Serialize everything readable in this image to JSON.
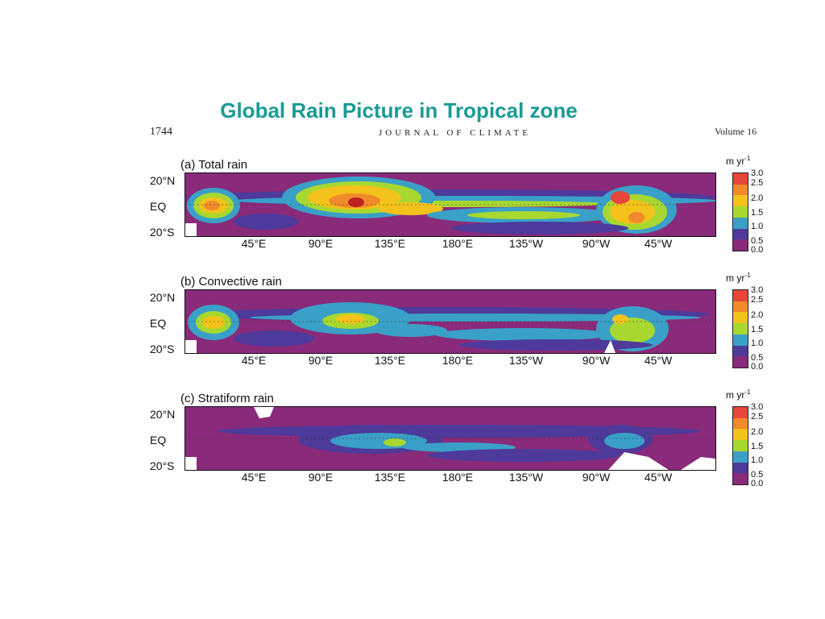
{
  "slide": {
    "title": "Global Rain Picture in Tropical zone"
  },
  "journal": {
    "page": "1744",
    "name": "JOURNAL OF CLIMATE",
    "volume": "Volume 16"
  },
  "map": {
    "lat_labels": [
      "20°N",
      "EQ",
      "20°S"
    ],
    "lon_labels": [
      "45°E",
      "90°E",
      "135°E",
      "180°E",
      "135°W",
      "90°W",
      "45°W"
    ],
    "colorbar": {
      "unit": "m yr",
      "unit_exp": "-1",
      "ticks": [
        "3.0",
        "2.5",
        "2.0",
        "1.5",
        "1.0",
        "0.5",
        "0.0"
      ],
      "colors": [
        "#e8463a",
        "#f08a2a",
        "#f3c21b",
        "#a8d830",
        "#3aa0c8",
        "#4d3a9a",
        "#8a2a7a"
      ]
    },
    "panels": [
      {
        "label": "(a) Total rain"
      },
      {
        "label": "(b) Convective rain"
      },
      {
        "label": "(c) Stratiform rain"
      }
    ]
  }
}
